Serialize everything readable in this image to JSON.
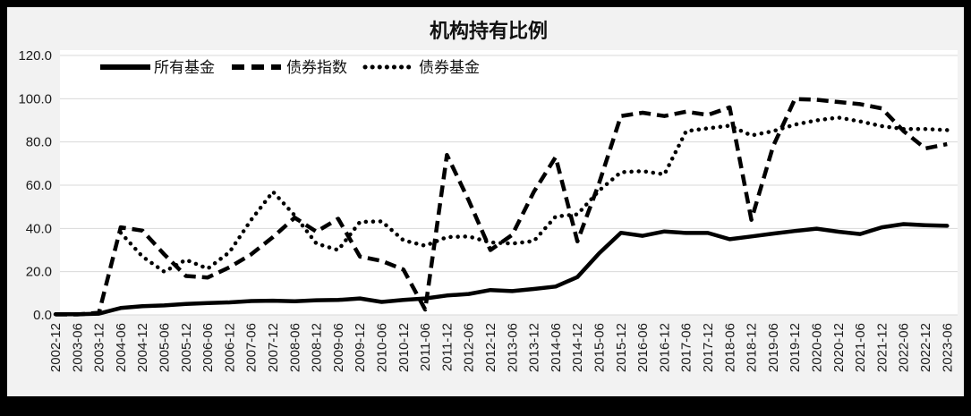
{
  "window": {
    "frame_color": "#000000",
    "background_color": "#f2f2f2",
    "plot_background_color": "#ffffff",
    "gridline_color": "#d9d9d9",
    "line_color": "#000000"
  },
  "chart_data": {
    "type": "line",
    "title": "机构持有比例",
    "xlabel": "",
    "ylabel": "",
    "ylim": [
      0,
      120
    ],
    "yticks": [
      "0.0",
      "20.0",
      "40.0",
      "60.0",
      "80.0",
      "100.0",
      "120.0"
    ],
    "grid": "horizontal",
    "legend_position": "top-inside",
    "categories": [
      "2002-12",
      "2003-06",
      "2003-12",
      "2004-06",
      "2004-12",
      "2005-06",
      "2005-12",
      "2006-06",
      "2006-12",
      "2007-06",
      "2007-12",
      "2008-06",
      "2008-12",
      "2009-06",
      "2009-12",
      "2010-06",
      "2010-12",
      "2011-06",
      "2011-12",
      "2012-06",
      "2012-12",
      "2013-06",
      "2013-12",
      "2014-06",
      "2014-12",
      "2015-06",
      "2015-12",
      "2016-06",
      "2016-12",
      "2017-06",
      "2017-12",
      "2018-06",
      "2018-12",
      "2019-06",
      "2019-12",
      "2020-06",
      "2020-12",
      "2021-06",
      "2021-12",
      "2022-06",
      "2022-12",
      "2023-06"
    ],
    "series": [
      {
        "name": "所有基金",
        "style": "solid",
        "values": [
          0.3,
          0.3,
          0.6,
          3.2,
          4.0,
          4.4,
          5.1,
          5.5,
          5.8,
          6.4,
          6.6,
          6.3,
          6.8,
          6.9,
          7.6,
          6.0,
          6.9,
          7.6,
          9.0,
          9.7,
          11.5,
          11.0,
          12.0,
          13.1,
          17.5,
          28.5,
          38.0,
          36.6,
          38.6,
          37.9,
          37.9,
          35.0,
          36.3,
          37.6,
          38.8,
          39.9,
          38.5,
          37.4,
          40.5,
          42.0,
          41.5,
          41.2
        ]
      },
      {
        "name": "债券指数",
        "style": "dashed",
        "values": [
          0.2,
          0.2,
          1.0,
          40.5,
          39.0,
          28.0,
          18.0,
          17.3,
          22.0,
          28.0,
          36.0,
          45.0,
          38.5,
          44.5,
          27.0,
          25.0,
          21.0,
          2.5,
          74.0,
          53.0,
          30.0,
          37.0,
          57.0,
          73.0,
          34.0,
          61.0,
          92.0,
          93.5,
          92.0,
          94.0,
          92.5,
          96.0,
          44.0,
          78.0,
          99.8,
          99.5,
          98.5,
          97.5,
          95.5,
          85.0,
          77.0,
          79.0
        ]
      },
      {
        "name": "债券基金",
        "style": "dotted",
        "values": [
          null,
          null,
          null,
          38.0,
          27.0,
          20.0,
          25.5,
          21.4,
          29.0,
          44.0,
          57.0,
          46.0,
          33.0,
          30.0,
          43.0,
          43.3,
          34.5,
          32.0,
          36.0,
          36.3,
          33.5,
          33.0,
          34.2,
          45.5,
          46.5,
          57.5,
          66.0,
          66.5,
          65.0,
          85.0,
          86.3,
          87.5,
          83.0,
          85.0,
          88.0,
          90.0,
          91.3,
          89.5,
          87.3,
          86.0,
          86.0,
          85.5
        ]
      }
    ]
  }
}
